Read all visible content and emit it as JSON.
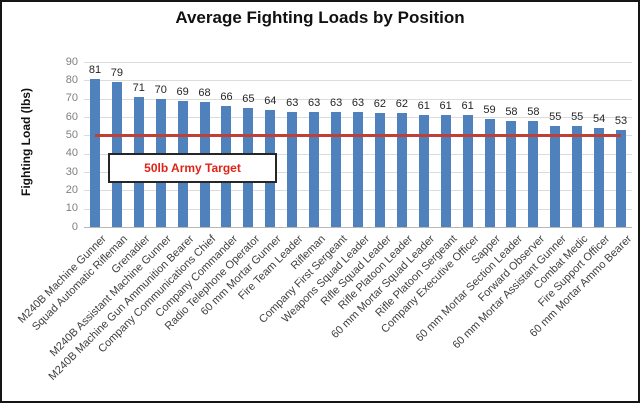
{
  "chart_data": {
    "type": "bar",
    "title": "Average Fighting Loads by Position",
    "xlabel": "",
    "ylabel": "Fighting Load (lbs)",
    "ylim": [
      0,
      90
    ],
    "ytick_step": 10,
    "grid": true,
    "legend": "none",
    "bar_color": "#4f81bd",
    "categories": [
      "M240B Machine Gunner",
      "Squad Automatic Rifleman",
      "Grenadier",
      "M240B Assistant Machine Gunner",
      "M240B Machine Gun Ammunition Bearer",
      "Company Communications Chief",
      "Company Commander",
      "Radio Telephone Operator",
      "60 mm Mortar Gunner",
      "Fire Team Leader",
      "Rifleman",
      "Company First Sergeant",
      "Weapons Squad Leader",
      "Rifle Squad Leader",
      "Rifle Platoon Leader",
      "60 mm Mortar Squad Leader",
      "Rifle Platoon Sergeant",
      "Company Executive Officer",
      "Sapper",
      "60 mm Mortar Section Leader",
      "Forward Observer",
      "60 mm Mortar Assistant Gunner",
      "Combat Medic",
      "Fire Support Officer",
      "60 mm Mortar Ammo Bearer"
    ],
    "values": [
      81,
      79,
      71,
      70,
      69,
      68,
      66,
      65,
      64,
      63,
      63,
      63,
      63,
      62,
      62,
      61,
      61,
      61,
      59,
      58,
      58,
      55,
      55,
      54,
      53
    ],
    "yticks": [
      0,
      10,
      20,
      30,
      40,
      50,
      60,
      70,
      80,
      90
    ],
    "reference_line": {
      "value": 50,
      "color": "#be4036",
      "label": "50lb Army Target",
      "label_color": "#e02419"
    }
  }
}
